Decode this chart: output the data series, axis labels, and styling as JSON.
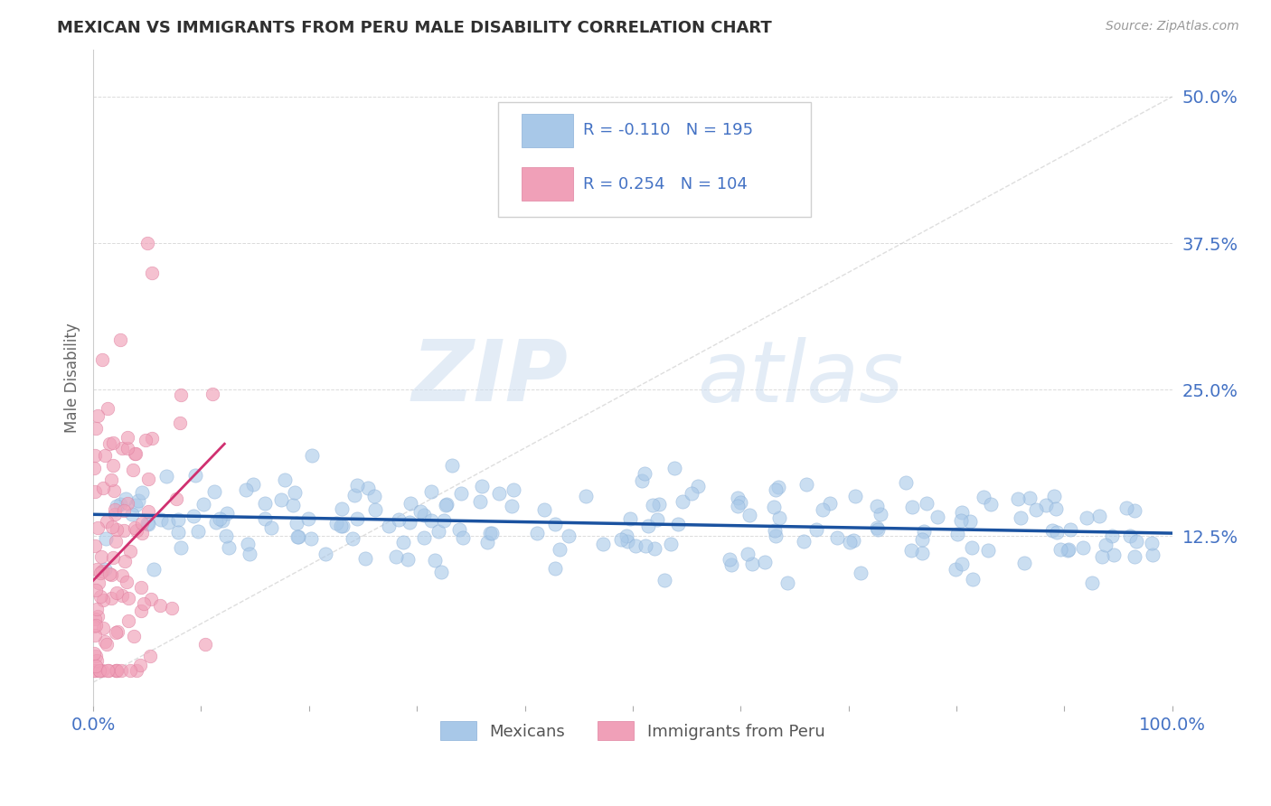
{
  "title": "MEXICAN VS IMMIGRANTS FROM PERU MALE DISABILITY CORRELATION CHART",
  "source_text": "Source: ZipAtlas.com",
  "ylabel": "Male Disability",
  "xlim": [
    0.0,
    1.0
  ],
  "ylim": [
    -0.02,
    0.54
  ],
  "yticks": [
    0.125,
    0.25,
    0.375,
    0.5
  ],
  "ytick_labels": [
    "12.5%",
    "25.0%",
    "37.5%",
    "50.0%"
  ],
  "R_blue": -0.11,
  "N_blue": 195,
  "R_pink": 0.254,
  "N_pink": 104,
  "blue_color": "#a8c8e8",
  "pink_color": "#f0a0b8",
  "blue_line_color": "#1a52a0",
  "pink_line_color": "#d03070",
  "grid_color": "#cccccc",
  "title_color": "#303030",
  "axis_label_color": "#4472c4",
  "watermark_zip": "ZIP",
  "watermark_atlas": "atlas",
  "background_color": "#ffffff",
  "legend_R_blue": "R = -0.110",
  "legend_N_blue": "N = 195",
  "legend_R_pink": "R = 0.254",
  "legend_N_pink": "N = 104",
  "legend_label_blue": "Mexicans",
  "legend_label_pink": "Immigrants from Peru"
}
